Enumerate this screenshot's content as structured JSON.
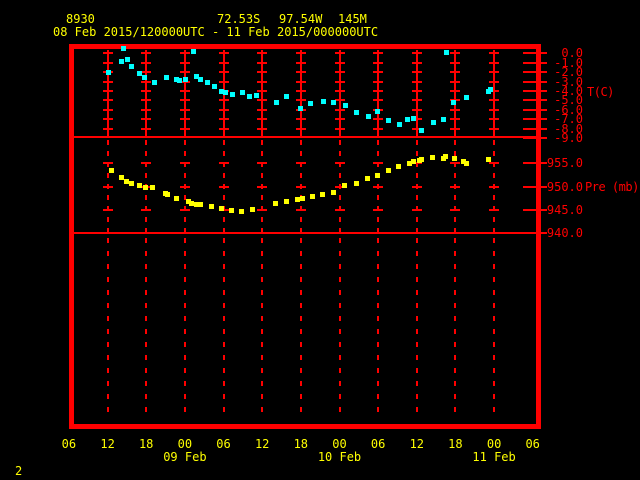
{
  "header": {
    "station_id": "8930",
    "latitude": "72.53S",
    "longitude": "97.54W",
    "elevation": "145M",
    "time_range": "08 Feb 2015/120000UTC - 11 Feb 2015/000000UTC"
  },
  "page_number": "2",
  "colors": {
    "background": "#000000",
    "frame": "#ff0000",
    "axis_text": "#ff0000",
    "header_text": "#ffff00",
    "temperature_series": "#00ffff",
    "pressure_series": "#ffff00"
  },
  "x_axis": {
    "hour_labels": [
      "06",
      "12",
      "18",
      "00",
      "06",
      "12",
      "18",
      "00",
      "06",
      "12",
      "18",
      "00",
      "06"
    ],
    "date_labels": [
      {
        "label": "09 Feb",
        "hour_index": 3
      },
      {
        "label": "10 Feb",
        "hour_index": 7
      },
      {
        "label": "11 Feb",
        "hour_index": 11
      }
    ]
  },
  "temp_axis": {
    "title": "T(C)",
    "tick_labels": [
      "0.0",
      "-1.0",
      "-2.0",
      "-3.0",
      "-4.0",
      "-5.0",
      "-6.0",
      "-7.0",
      "-8.0",
      "-9.0"
    ],
    "tick_values": [
      0,
      -1,
      -2,
      -3,
      -4,
      -5,
      -6,
      -7,
      -8,
      -9
    ]
  },
  "pressure_axis": {
    "title": "Pre (mb)",
    "tick_labels": [
      "955.0",
      "950.0",
      "945.0",
      "940.0"
    ],
    "tick_values": [
      955,
      950,
      945,
      940
    ]
  },
  "chart_data": [
    {
      "type": "scatter",
      "name": "Temperature",
      "unit": "C",
      "x_unit": "hours since 08 Feb 2015 0600UTC",
      "xlim": [
        0,
        72
      ],
      "ylim": [
        -9.5,
        0.5
      ],
      "points": [
        [
          6.1,
          -2.0
        ],
        [
          8.1,
          -0.8
        ],
        [
          8.4,
          0.6
        ],
        [
          9.0,
          -0.6
        ],
        [
          9.7,
          -1.3
        ],
        [
          10.9,
          -2.1
        ],
        [
          11.7,
          -2.5
        ],
        [
          13.2,
          -3.0
        ],
        [
          15.1,
          -2.5
        ],
        [
          16.6,
          -2.7
        ],
        [
          17.1,
          -2.8
        ],
        [
          18.0,
          -2.7
        ],
        [
          19.3,
          0.2
        ],
        [
          19.7,
          -2.4
        ],
        [
          20.4,
          -2.7
        ],
        [
          21.4,
          -3.0
        ],
        [
          22.5,
          -3.5
        ],
        [
          23.6,
          -4.0
        ],
        [
          24.2,
          -4.1
        ],
        [
          25.3,
          -4.3
        ],
        [
          26.9,
          -4.1
        ],
        [
          28.0,
          -4.5
        ],
        [
          29.0,
          -4.4
        ],
        [
          32.1,
          -5.2
        ],
        [
          33.7,
          -4.5
        ],
        [
          35.9,
          -5.8
        ],
        [
          37.4,
          -5.3
        ],
        [
          39.4,
          -5.1
        ],
        [
          41.0,
          -5.2
        ],
        [
          42.9,
          -5.5
        ],
        [
          44.6,
          -6.2
        ],
        [
          46.4,
          -6.6
        ],
        [
          47.8,
          -6.1
        ],
        [
          49.5,
          -7.1
        ],
        [
          51.2,
          -7.5
        ],
        [
          52.5,
          -7.0
        ],
        [
          53.4,
          -6.9
        ],
        [
          54.7,
          -8.1
        ],
        [
          56.5,
          -7.3
        ],
        [
          58.1,
          -7.0
        ],
        [
          58.5,
          0.1
        ],
        [
          59.6,
          -5.2
        ],
        [
          61.7,
          -4.6
        ],
        [
          65.0,
          -4.0
        ],
        [
          65.3,
          -3.8
        ]
      ]
    },
    {
      "type": "scatter",
      "name": "Pressure",
      "unit": "mb",
      "x_unit": "hours since 08 Feb 2015 0600UTC",
      "xlim": [
        0,
        72
      ],
      "ylim": [
        940,
        960.6
      ],
      "points": [
        [
          6.5,
          953.6
        ],
        [
          8.1,
          952.1
        ],
        [
          8.9,
          951.3
        ],
        [
          9.7,
          950.8
        ],
        [
          10.9,
          950.4
        ],
        [
          11.8,
          950.0
        ],
        [
          12.9,
          949.9
        ],
        [
          14.9,
          948.7
        ],
        [
          15.2,
          948.4
        ],
        [
          16.6,
          947.6
        ],
        [
          18.5,
          946.9
        ],
        [
          19.0,
          946.5
        ],
        [
          19.7,
          946.3
        ],
        [
          20.4,
          946.3
        ],
        [
          22.1,
          945.8
        ],
        [
          23.6,
          945.4
        ],
        [
          25.2,
          945.1
        ],
        [
          26.7,
          944.8
        ],
        [
          28.4,
          945.3
        ],
        [
          32.0,
          946.4
        ],
        [
          33.7,
          946.9
        ],
        [
          35.4,
          947.3
        ],
        [
          36.2,
          947.5
        ],
        [
          37.7,
          948.0
        ],
        [
          39.3,
          948.5
        ],
        [
          41.0,
          948.9
        ],
        [
          42.7,
          950.3
        ],
        [
          44.6,
          950.7
        ],
        [
          46.2,
          951.8
        ],
        [
          47.8,
          952.5
        ],
        [
          49.5,
          953.5
        ],
        [
          51.1,
          954.5
        ],
        [
          52.8,
          955.1
        ],
        [
          53.4,
          955.4
        ],
        [
          54.3,
          955.8
        ],
        [
          54.7,
          956.0
        ],
        [
          56.3,
          956.4
        ],
        [
          58.0,
          956.2
        ],
        [
          58.4,
          956.5
        ],
        [
          59.8,
          956.2
        ],
        [
          61.1,
          955.5
        ],
        [
          61.6,
          955.1
        ],
        [
          65.0,
          955.9
        ]
      ]
    }
  ]
}
